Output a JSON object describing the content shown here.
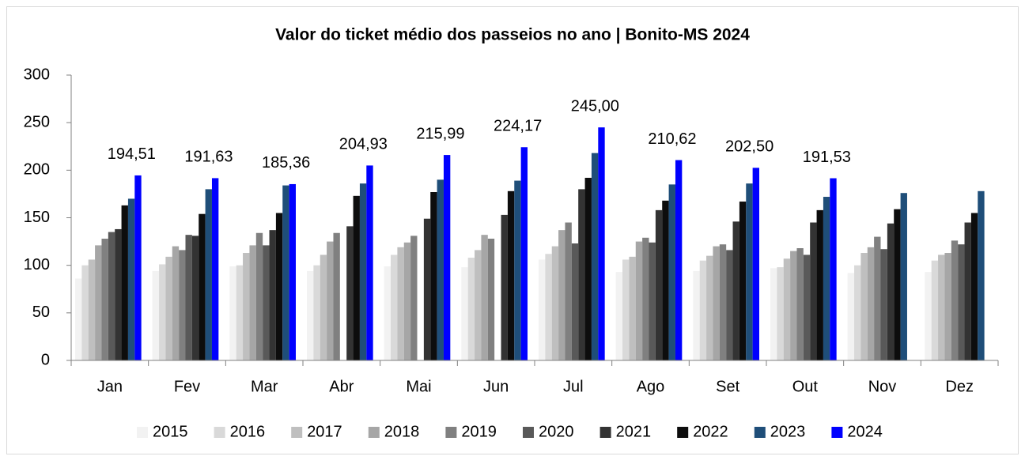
{
  "chart_data": {
    "type": "bar",
    "title": "Valor do ticket médio dos passeios no ano | Bonito-MS 2024",
    "categories": [
      "Jan",
      "Fev",
      "Mar",
      "Abr",
      "Mai",
      "Jun",
      "Jul",
      "Ago",
      "Set",
      "Out",
      "Nov",
      "Dez"
    ],
    "ylim": [
      0,
      300
    ],
    "yticks": [
      0,
      50,
      100,
      150,
      200,
      250,
      300
    ],
    "grid": false,
    "legend": "bottom",
    "series": [
      {
        "name": "2015",
        "color": "#f2f2f2",
        "values": [
          86,
          94,
          99,
          94,
          99,
          98,
          106,
          93,
          94,
          97,
          92,
          93
        ]
      },
      {
        "name": "2016",
        "color": "#d9d9d9",
        "values": [
          100,
          101,
          100,
          100,
          111,
          108,
          112,
          106,
          105,
          98,
          100,
          105
        ]
      },
      {
        "name": "2017",
        "color": "#bfbfbf",
        "values": [
          106,
          109,
          113,
          111,
          119,
          116,
          120,
          109,
          110,
          107,
          113,
          111
        ]
      },
      {
        "name": "2018",
        "color": "#a6a6a6",
        "values": [
          121,
          120,
          121,
          125,
          124,
          132,
          137,
          125,
          120,
          115,
          119,
          113
        ]
      },
      {
        "name": "2019",
        "color": "#808080",
        "values": [
          128,
          116,
          134,
          134,
          131,
          128,
          145,
          129,
          122,
          118,
          130,
          126
        ]
      },
      {
        "name": "2020",
        "color": "#595959",
        "values": [
          135,
          132,
          121,
          null,
          null,
          null,
          123,
          124,
          116,
          111,
          117,
          122
        ]
      },
      {
        "name": "2021",
        "color": "#333333",
        "values": [
          138,
          131,
          137,
          141,
          149,
          153,
          180,
          158,
          146,
          145,
          144,
          145
        ]
      },
      {
        "name": "2022",
        "color": "#0d0d0d",
        "values": [
          163,
          154,
          155,
          173,
          177,
          178,
          192,
          168,
          167,
          158,
          159,
          155
        ]
      },
      {
        "name": "2023",
        "color": "#1f4e79",
        "values": [
          170,
          180,
          184,
          186,
          190,
          189,
          218,
          185,
          186,
          172,
          176,
          178
        ]
      },
      {
        "name": "2024",
        "color": "#0000ff",
        "values": [
          194.51,
          191.63,
          185.36,
          204.93,
          215.99,
          224.17,
          245.0,
          210.62,
          202.5,
          191.53,
          null,
          null
        ],
        "value_labels": [
          "194,51",
          "191,63",
          "185,36",
          "204,93",
          "215,99",
          "224,17",
          "245,00",
          "210,62",
          "202,50",
          "191,53",
          null,
          null
        ]
      }
    ]
  }
}
